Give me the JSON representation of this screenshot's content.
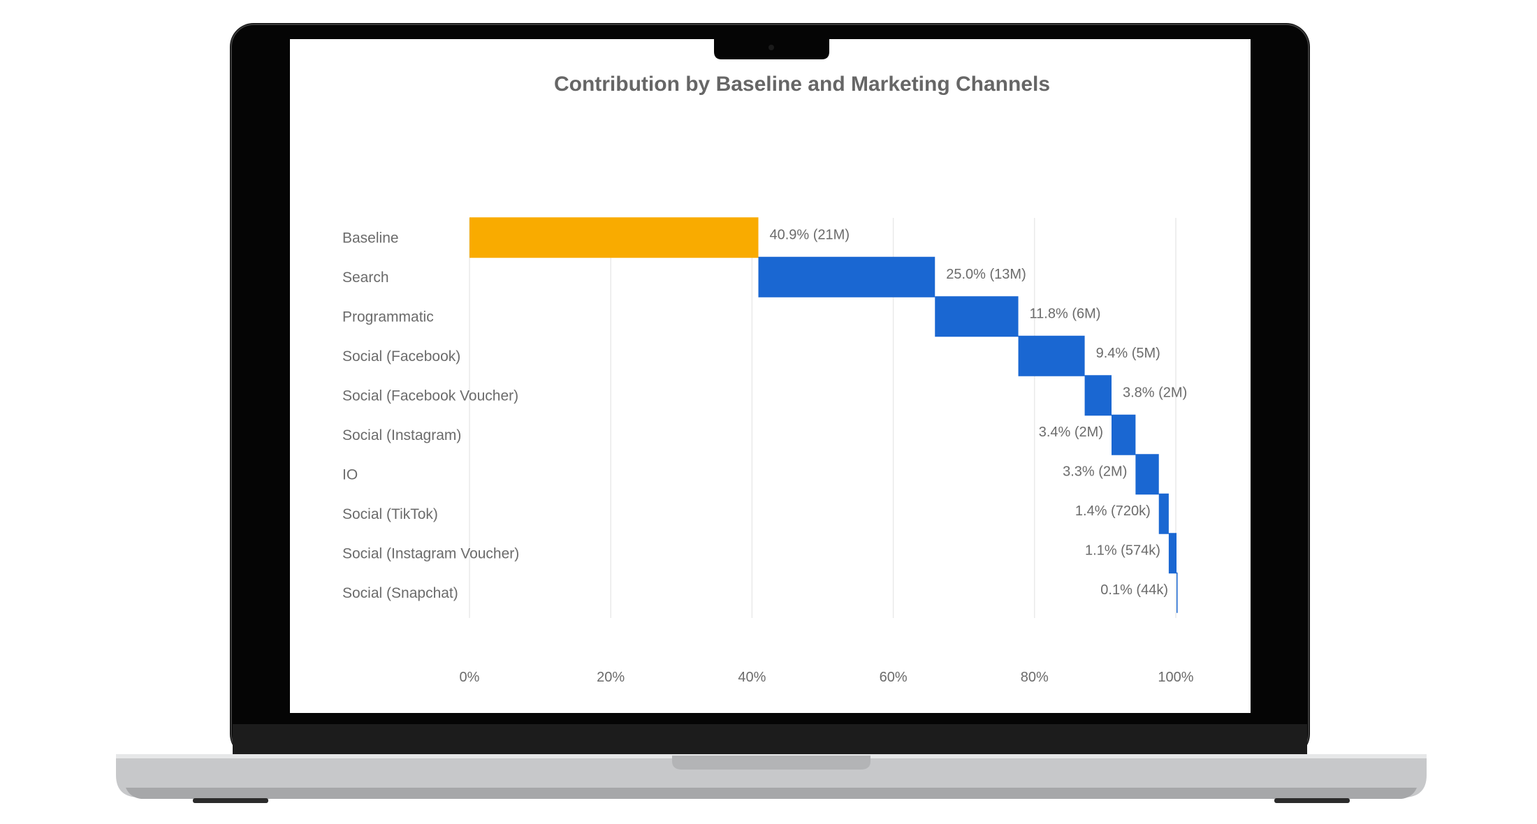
{
  "device": {
    "type": "laptop",
    "colors": {
      "bezel": "#050505",
      "base": "#c7c8ca",
      "base_dark": "#8d8e90",
      "screen": "#ffffff"
    }
  },
  "chart_data": {
    "type": "bar",
    "variant": "waterfall-horizontal",
    "title": "Contribution by Baseline and Marketing Channels",
    "xlabel": "",
    "ylabel": "",
    "xlim": [
      0,
      100
    ],
    "x_ticks": [
      "0%",
      "20%",
      "40%",
      "60%",
      "80%",
      "100%"
    ],
    "x_tick_values": [
      0,
      20,
      40,
      60,
      80,
      100
    ],
    "grid": true,
    "legend": "none",
    "categories": [
      "Baseline",
      "Search",
      "Programmatic",
      "Social (Facebook)",
      "Social (Facebook Voucher)",
      "Social (Instagram)",
      "IO",
      "Social (TikTok)",
      "Social (Instagram Voucher)",
      "Social (Snapchat)"
    ],
    "values": [
      40.9,
      25.0,
      11.8,
      9.4,
      3.8,
      3.4,
      3.3,
      1.4,
      1.1,
      0.1
    ],
    "data_labels": [
      "40.9% (21M)",
      "25.0% (13M)",
      "11.8% (6M)",
      "9.4% (5M)",
      "3.8% (2M)",
      "3.4% (2M)",
      "3.3% (2M)",
      "1.4% (720k)",
      "1.1% (574k)",
      "0.1% (44k)"
    ],
    "colors": {
      "baseline": "#f9ab00",
      "channel": "#1a67d2"
    }
  }
}
